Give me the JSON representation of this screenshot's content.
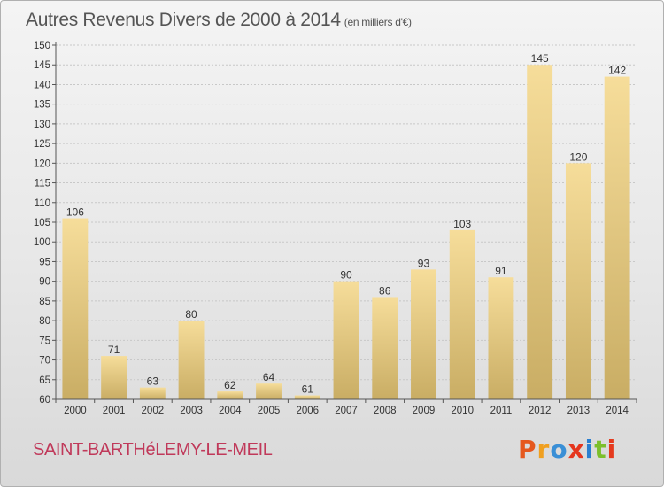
{
  "header": {
    "title": "Autres Revenus Divers de 2000 à 2014",
    "unit": "(en milliers d'€)"
  },
  "footer": {
    "commune": "SAINT-BARTHéLEMY-LE-MEIL",
    "brand": "Proxiti",
    "brand_colors": [
      "#e5581e",
      "#f0a020",
      "#3a8fd6",
      "#e5361e",
      "#2a7fd0",
      "#7cbf2c",
      "#e53a1e"
    ]
  },
  "colors": {
    "bar_light": "#f6dd9a",
    "bar_dark": "#c9ad64",
    "axis": "#555555",
    "grid": "#c8c8c8",
    "commune": "#c0395a"
  },
  "chart_data": {
    "type": "bar",
    "title": "Autres Revenus Divers de 2000 à 2014",
    "subtitle": "(en milliers d'€)",
    "xlabel": "",
    "ylabel": "",
    "categories": [
      "2000",
      "2001",
      "2002",
      "2003",
      "2004",
      "2005",
      "2006",
      "2007",
      "2008",
      "2009",
      "2010",
      "2011",
      "2012",
      "2013",
      "2014"
    ],
    "values": [
      106,
      71,
      63,
      80,
      62,
      64,
      61,
      90,
      86,
      93,
      103,
      91,
      145,
      120,
      142
    ],
    "ylim": [
      60,
      150
    ],
    "yticks": [
      60,
      65,
      70,
      75,
      80,
      85,
      90,
      95,
      100,
      105,
      110,
      115,
      120,
      125,
      130,
      135,
      140,
      145,
      150
    ],
    "grid": true,
    "data_labels": true
  }
}
